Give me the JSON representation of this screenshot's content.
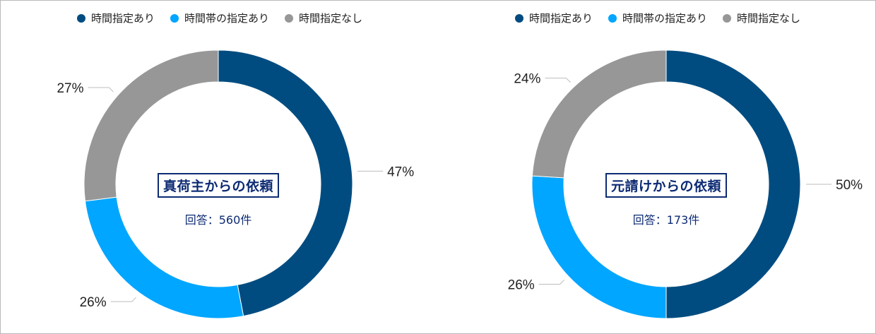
{
  "colors": {
    "time_specified": "#004c80",
    "time_slot_specified": "#00a6ff",
    "no_time_specified": "#979797",
    "leader": "#bdbdbd",
    "title": "#0d2b73"
  },
  "chart_data": [
    {
      "type": "pie",
      "donut": true,
      "legend_position": "top",
      "center_title": "真荷主からの依頼",
      "center_subtitle": "回答：560件",
      "slices": [
        {
          "name": "時間指定あり",
          "value": 47,
          "label": "47%"
        },
        {
          "name": "時間帯の指定あり",
          "value": 26,
          "label": "26%"
        },
        {
          "name": "時間指定なし",
          "value": 27,
          "label": "27%"
        }
      ]
    },
    {
      "type": "pie",
      "donut": true,
      "legend_position": "top",
      "center_title": "元請けからの依頼",
      "center_subtitle": "回答：173件",
      "slices": [
        {
          "name": "時間指定あり",
          "value": 50,
          "label": "50%"
        },
        {
          "name": "時間帯の指定あり",
          "value": 26,
          "label": "26%"
        },
        {
          "name": "時間指定なし",
          "value": 24,
          "label": "24%"
        }
      ]
    }
  ]
}
